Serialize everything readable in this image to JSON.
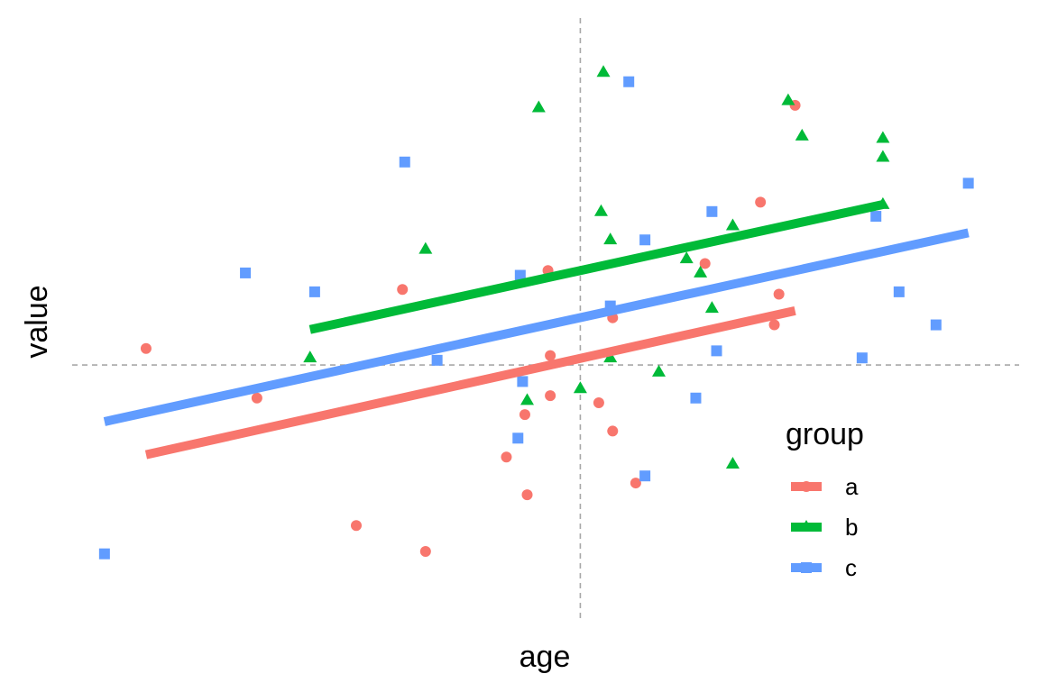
{
  "chart_data": {
    "type": "scatter",
    "xlabel": "age",
    "ylabel": "value",
    "grid": false,
    "reference_lines": {
      "x": 0,
      "y": 0,
      "style": "dashed",
      "color": "#A8A8A8"
    },
    "xlim": [
      -2.2,
      1.9
    ],
    "ylim": [
      -1.08,
      1.47
    ],
    "legend": {
      "title": "group",
      "position": "right",
      "entries": [
        {
          "label": "a",
          "color": "#F8766D",
          "shape": "circle"
        },
        {
          "label": "b",
          "color": "#00BA38",
          "shape": "triangle"
        },
        {
          "label": "c",
          "color": "#619CFF",
          "shape": "square"
        }
      ]
    },
    "series": [
      {
        "name": "a",
        "color": "#F8766D",
        "shape": "circle",
        "points": [
          [
            -1.88,
            0.07
          ],
          [
            -1.4,
            -0.14
          ],
          [
            -0.77,
            0.32
          ],
          [
            -0.97,
            -0.68
          ],
          [
            -0.67,
            -0.79
          ],
          [
            -0.32,
            -0.39
          ],
          [
            -0.24,
            -0.21
          ],
          [
            -0.23,
            -0.55
          ],
          [
            -0.14,
            0.4
          ],
          [
            -0.13,
            0.04
          ],
          [
            -0.13,
            -0.13
          ],
          [
            0.08,
            -0.16
          ],
          [
            0.14,
            0.2
          ],
          [
            0.14,
            -0.28
          ],
          [
            0.24,
            -0.5
          ],
          [
            0.54,
            0.43
          ],
          [
            0.78,
            0.69
          ],
          [
            0.84,
            0.17
          ],
          [
            0.86,
            0.3
          ],
          [
            0.93,
            1.1
          ]
        ],
        "fit": {
          "x": [
            -1.88,
            0.93
          ],
          "y": [
            -0.38,
            0.23
          ]
        }
      },
      {
        "name": "b",
        "color": "#00BA38",
        "shape": "triangle",
        "points": [
          [
            -1.17,
            0.03
          ],
          [
            -0.67,
            0.49
          ],
          [
            -0.18,
            1.09
          ],
          [
            -0.23,
            -0.15
          ],
          [
            0.0,
            -0.1
          ],
          [
            0.09,
            0.65
          ],
          [
            0.1,
            1.24
          ],
          [
            0.13,
            0.53
          ],
          [
            0.13,
            0.03
          ],
          [
            0.34,
            -0.03
          ],
          [
            0.46,
            0.45
          ],
          [
            0.52,
            0.39
          ],
          [
            0.57,
            0.24
          ],
          [
            0.66,
            0.59
          ],
          [
            0.66,
            -0.42
          ],
          [
            0.9,
            1.12
          ],
          [
            0.96,
            0.97
          ],
          [
            1.31,
            0.96
          ],
          [
            1.31,
            0.88
          ],
          [
            1.31,
            0.68
          ]
        ],
        "fit": {
          "x": [
            -1.17,
            1.31
          ],
          "y": [
            0.15,
            0.68
          ]
        }
      },
      {
        "name": "c",
        "color": "#619CFF",
        "shape": "square",
        "points": [
          [
            -2.06,
            -0.8
          ],
          [
            -1.45,
            0.39
          ],
          [
            -1.15,
            0.31
          ],
          [
            -0.76,
            0.86
          ],
          [
            -0.62,
            0.02
          ],
          [
            -0.26,
            0.38
          ],
          [
            -0.25,
            -0.07
          ],
          [
            -0.27,
            -0.31
          ],
          [
            0.13,
            0.25
          ],
          [
            0.21,
            1.2
          ],
          [
            0.28,
            0.53
          ],
          [
            0.28,
            -0.47
          ],
          [
            0.5,
            -0.14
          ],
          [
            0.57,
            0.65
          ],
          [
            0.59,
            0.06
          ],
          [
            1.22,
            0.03
          ],
          [
            1.28,
            0.63
          ],
          [
            1.38,
            0.31
          ],
          [
            1.54,
            0.17
          ],
          [
            1.68,
            0.77
          ]
        ],
        "fit": {
          "x": [
            -2.06,
            1.68
          ],
          "y": [
            -0.24,
            0.56
          ]
        }
      }
    ]
  }
}
